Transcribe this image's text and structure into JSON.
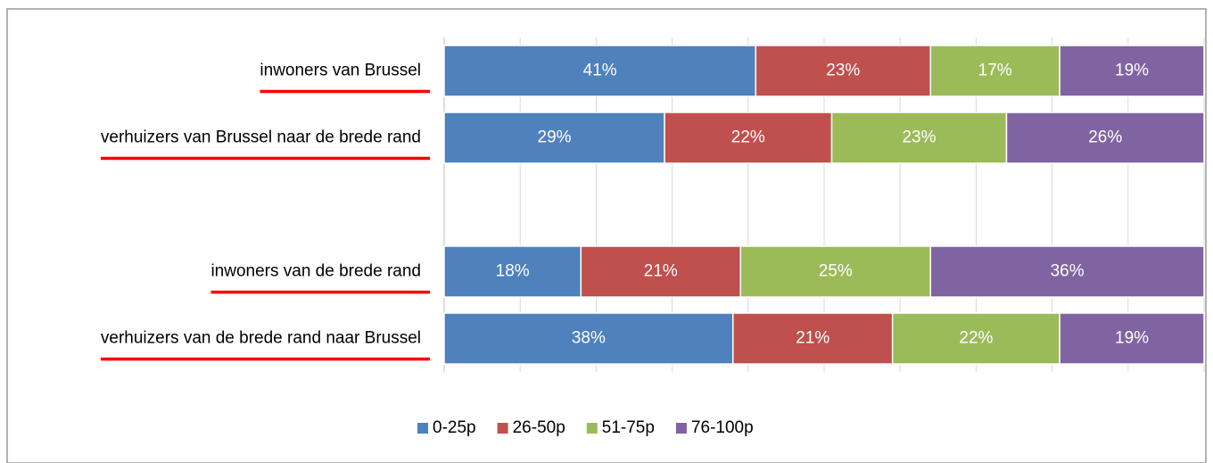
{
  "chart_data": {
    "type": "bar",
    "orientation": "horizontal",
    "stacked": true,
    "categories": [
      "inwoners van Brussel",
      "verhuizers van Brussel naar de brede rand",
      null,
      "inwoners van de brede rand",
      "verhuizers van de brede rand naar Brussel"
    ],
    "series": [
      {
        "name": "0-25p",
        "color": "#4f81bd",
        "values": [
          41,
          29,
          null,
          18,
          38
        ],
        "value_labels": [
          "41%",
          "29%",
          null,
          "18%",
          "38%"
        ]
      },
      {
        "name": "26-50p",
        "color": "#c0504d",
        "values": [
          23,
          22,
          null,
          21,
          21
        ],
        "value_labels": [
          "23%",
          "22%",
          null,
          "21%",
          "21%"
        ]
      },
      {
        "name": "51-75p",
        "color": "#9bbb59",
        "values": [
          17,
          23,
          null,
          25,
          22
        ],
        "value_labels": [
          "17%",
          "23%",
          null,
          "25%",
          "22%"
        ]
      },
      {
        "name": "76-100p",
        "color": "#8064a2",
        "values": [
          19,
          26,
          null,
          36,
          19
        ],
        "value_labels": [
          "19%",
          "26%",
          null,
          "36%",
          "19%"
        ]
      }
    ],
    "xlim": [
      0,
      100
    ],
    "xticks": [
      0,
      10,
      20,
      30,
      40,
      50,
      60,
      70,
      80,
      90,
      100
    ],
    "grid": true,
    "legend": "bottom",
    "label_underline_color": "#ff0000"
  }
}
